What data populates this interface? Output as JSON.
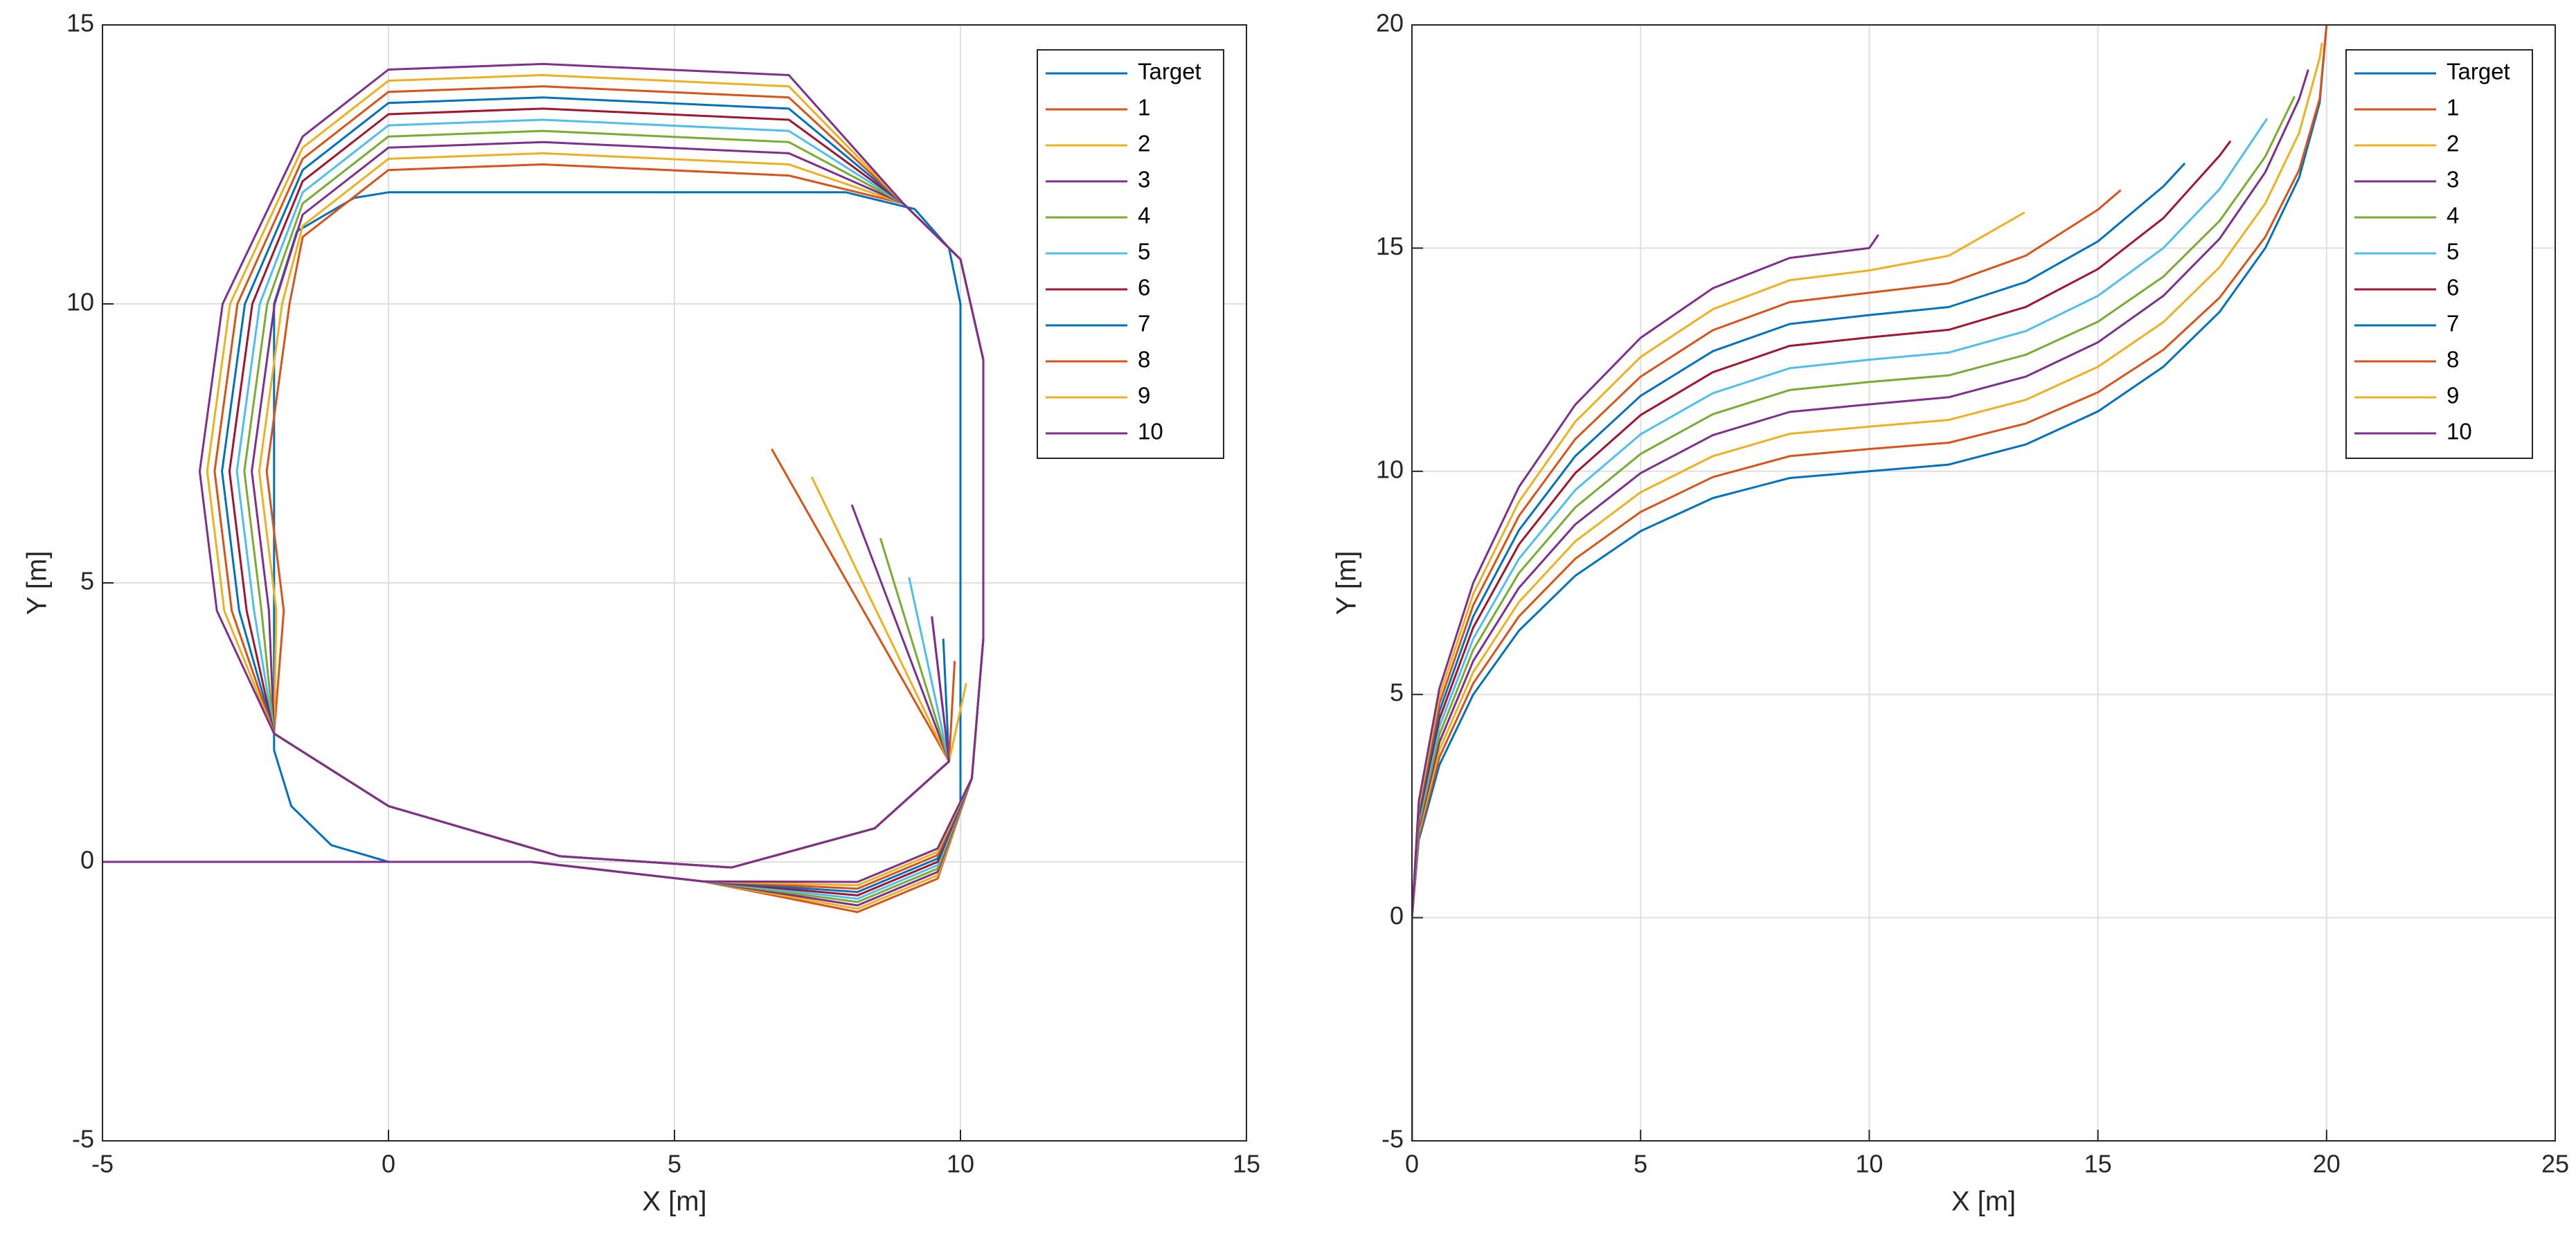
{
  "chart_data": [
    {
      "type": "line",
      "xlabel": "X [m]",
      "ylabel": "Y [m]",
      "xlim": [
        -5,
        15
      ],
      "ylim": [
        -5,
        15
      ],
      "xticks": [
        -5,
        0,
        5,
        10,
        15
      ],
      "yticks": [
        -5,
        0,
        5,
        10,
        15
      ],
      "grid": true,
      "legend": "northeast",
      "series": [
        {
          "name": "Target",
          "color": "#0072BD",
          "x": [
            0,
            -1,
            -1.7,
            -2,
            -2,
            -1.6,
            -0.6,
            0,
            8,
            9.2,
            9.8,
            10,
            10,
            10
          ],
          "y": [
            0,
            0.3,
            1,
            2,
            10,
            11.3,
            11.9,
            12,
            12,
            11.7,
            11,
            10,
            5,
            1
          ]
        },
        {
          "name": "1",
          "color": "#D95319",
          "x": [
            -5,
            2.5,
            5.5,
            8.2,
            9.6,
            10.2,
            10.4,
            10.4,
            10,
            9,
            7,
            2.7,
            0,
            -1.5,
            -1.73,
            -2.13,
            -1.83,
            -2,
            0,
            3,
            6,
            8.5,
            9.8,
            6.7
          ],
          "y": [
            0,
            0,
            -0.35,
            -0.9,
            -0.3,
            1.5,
            4,
            9,
            10.8,
            11.8,
            12.3,
            12.5,
            12.4,
            11.2,
            10,
            7,
            4.5,
            2.3,
            1,
            0.1,
            -0.1,
            0.6,
            1.8,
            7.4
          ]
        },
        {
          "name": "2",
          "color": "#EDB120",
          "x": [
            -5,
            2.5,
            5.5,
            8.2,
            9.6,
            10.2,
            10.4,
            10.4,
            10,
            9,
            7,
            2.7,
            0,
            -1.5,
            -1.86,
            -2.26,
            -1.96,
            -2,
            0,
            3,
            6,
            8.5,
            9.8,
            7.4
          ],
          "y": [
            0,
            0,
            -0.35,
            -0.84,
            -0.24,
            1.5,
            4,
            9,
            10.8,
            11.8,
            12.5,
            12.7,
            12.6,
            11.4,
            10,
            7,
            4.5,
            2.3,
            1,
            0.1,
            -0.1,
            0.6,
            1.8,
            6.9
          ]
        },
        {
          "name": "3",
          "color": "#7E2F8E",
          "x": [
            -5,
            2.5,
            5.5,
            8.2,
            9.6,
            10.2,
            10.4,
            10.4,
            10,
            9,
            7,
            2.7,
            0,
            -1.5,
            -1.99,
            -2.39,
            -2.09,
            -2,
            0,
            3,
            6,
            8.5,
            9.8,
            8.1
          ],
          "y": [
            0,
            0,
            -0.35,
            -0.78,
            -0.18,
            1.5,
            4,
            9,
            10.8,
            11.8,
            12.7,
            12.9,
            12.8,
            11.6,
            10,
            7,
            4.5,
            2.3,
            1,
            0.1,
            -0.1,
            0.6,
            1.8,
            6.4
          ]
        },
        {
          "name": "4",
          "color": "#77AC30",
          "x": [
            -5,
            2.5,
            5.5,
            8.2,
            9.6,
            10.2,
            10.4,
            10.4,
            10,
            9,
            7,
            2.7,
            0,
            -1.5,
            -2.12,
            -2.52,
            -2.22,
            -2,
            0,
            3,
            6,
            8.5,
            9.8,
            8.6
          ],
          "y": [
            0,
            0,
            -0.35,
            -0.72,
            -0.12,
            1.5,
            4,
            9,
            10.8,
            11.8,
            12.9,
            13.1,
            13,
            11.8,
            10,
            7,
            4.5,
            2.3,
            1,
            0.1,
            -0.1,
            0.6,
            1.8,
            5.8
          ]
        },
        {
          "name": "5",
          "color": "#4DBEEE",
          "x": [
            -5,
            2.5,
            5.5,
            8.2,
            9.6,
            10.2,
            10.4,
            10.4,
            10,
            9,
            7,
            2.7,
            0,
            -1.5,
            -2.25,
            -2.65,
            -2.35,
            -2,
            0,
            3,
            6,
            8.5,
            9.8,
            9.1
          ],
          "y": [
            0,
            0,
            -0.35,
            -0.66,
            -0.06,
            1.5,
            4,
            9,
            10.8,
            11.8,
            13.1,
            13.3,
            13.2,
            12,
            10,
            7,
            4.5,
            2.3,
            1,
            0.1,
            -0.1,
            0.6,
            1.8,
            5.1
          ]
        },
        {
          "name": "6",
          "color": "#A2142F",
          "x": [
            -5,
            2.5,
            5.5,
            8.2,
            9.6,
            10.2,
            10.4,
            10.4,
            10,
            9,
            7,
            2.7,
            0,
            -1.5,
            -2.38,
            -2.78,
            -2.48,
            -2,
            0,
            3,
            6,
            8.5,
            9.8,
            9.5
          ],
          "y": [
            0,
            0,
            -0.35,
            -0.6,
            0,
            1.5,
            4,
            9,
            10.8,
            11.8,
            13.3,
            13.5,
            13.4,
            12.2,
            10,
            7,
            4.5,
            2.3,
            1,
            0.1,
            -0.1,
            0.6,
            1.8,
            4.4
          ]
        },
        {
          "name": "7",
          "color": "#0072BD",
          "x": [
            -5,
            2.5,
            5.5,
            8.2,
            9.6,
            10.2,
            10.4,
            10.4,
            10,
            9,
            7,
            2.7,
            0,
            -1.5,
            -2.51,
            -2.91,
            -2.61,
            -2,
            0,
            3,
            6,
            8.5,
            9.8,
            9.7
          ],
          "y": [
            0,
            0,
            -0.35,
            -0.54,
            0.06,
            1.5,
            4,
            9,
            10.8,
            11.8,
            13.5,
            13.7,
            13.6,
            12.4,
            10,
            7,
            4.5,
            2.3,
            1,
            0.1,
            -0.1,
            0.6,
            1.8,
            4
          ]
        },
        {
          "name": "8",
          "color": "#D95319",
          "x": [
            -5,
            2.5,
            5.5,
            8.2,
            9.6,
            10.2,
            10.4,
            10.4,
            10,
            9,
            7,
            2.7,
            0,
            -1.5,
            -2.64,
            -3.04,
            -2.74,
            -2,
            0,
            3,
            6,
            8.5,
            9.8,
            9.9
          ],
          "y": [
            0,
            0,
            -0.35,
            -0.48,
            0.12,
            1.5,
            4,
            9,
            10.8,
            11.8,
            13.7,
            13.9,
            13.8,
            12.6,
            10,
            7,
            4.5,
            2.3,
            1,
            0.1,
            -0.1,
            0.6,
            1.8,
            3.6
          ]
        },
        {
          "name": "9",
          "color": "#EDB120",
          "x": [
            -5,
            2.5,
            5.5,
            8.2,
            9.6,
            10.2,
            10.4,
            10.4,
            10,
            9,
            7,
            2.7,
            0,
            -1.5,
            -2.77,
            -3.17,
            -2.87,
            -2,
            0,
            3,
            6,
            8.5,
            9.8,
            10.1
          ],
          "y": [
            0,
            0,
            -0.35,
            -0.42,
            0.18,
            1.5,
            4,
            9,
            10.8,
            11.8,
            13.9,
            14.1,
            14,
            12.8,
            10,
            7,
            4.5,
            2.3,
            1,
            0.1,
            -0.1,
            0.6,
            1.8,
            3.2
          ]
        },
        {
          "name": "10",
          "color": "#7E2F8E",
          "x": [
            -5,
            2.5,
            5.5,
            8.2,
            9.6,
            10.2,
            10.4,
            10.4,
            10,
            9,
            7,
            2.7,
            0,
            -1.5,
            -2.9,
            -3.3,
            -3,
            -2,
            0,
            3,
            6,
            8.5,
            9.8,
            9.5
          ],
          "y": [
            0,
            0,
            -0.35,
            -0.36,
            0.24,
            1.5,
            4,
            9,
            10.8,
            11.8,
            14.1,
            14.3,
            14.2,
            13,
            10,
            7,
            4.5,
            2.3,
            1,
            0.1,
            -0.1,
            0.6,
            1.8,
            4.4
          ]
        }
      ]
    },
    {
      "type": "line",
      "xlabel": "X [m]",
      "ylabel": "Y [m]",
      "xlim": [
        0,
        25
      ],
      "ylim": [
        -5,
        20
      ],
      "xticks": [
        0,
        5,
        10,
        15,
        20,
        25
      ],
      "yticks": [
        -5,
        0,
        5,
        10,
        15,
        20
      ],
      "grid": true,
      "legend": "northeast",
      "series": [
        {
          "name": "Target",
          "color": "#0072BD",
          "x": [
            0,
            0.15,
            0.6,
            1.34,
            2.34,
            3.57,
            5,
            6.58,
            8.26,
            10,
            11.74,
            13.42,
            15,
            16.43,
            17.66,
            18.66,
            19.4,
            19.85,
            20
          ],
          "y": [
            0,
            1.74,
            3.42,
            5,
            6.43,
            7.66,
            8.66,
            9.4,
            9.85,
            10,
            10.15,
            10.6,
            11.34,
            12.34,
            13.57,
            15,
            16.58,
            18.26,
            20
          ]
        },
        {
          "name": "1",
          "color": "#D95319",
          "x": [
            0,
            0,
            0.15,
            0.6,
            1.34,
            2.34,
            3.57,
            5,
            6.58,
            8.26,
            10,
            11.74,
            13.42,
            15,
            16.43,
            17.66,
            18.66,
            19.4,
            19.85,
            20
          ],
          "y": [
            -5,
            0,
            1.83,
            3.59,
            5.25,
            6.75,
            8.04,
            9.09,
            9.87,
            10.34,
            10.5,
            10.64,
            11.07,
            11.77,
            12.72,
            13.89,
            15.25,
            16.75,
            18.35,
            20
          ]
        },
        {
          "name": "2",
          "color": "#EDB120",
          "x": [
            0,
            0,
            0.15,
            0.6,
            1.34,
            2.34,
            3.57,
            5,
            6.58,
            8.26,
            10,
            11.74,
            13.42,
            15,
            16.43,
            17.66,
            18.66,
            19.4,
            19.85,
            19.9
          ],
          "y": [
            -5,
            0,
            1.91,
            3.76,
            5.5,
            7.07,
            8.43,
            9.53,
            10.34,
            10.84,
            11,
            11.15,
            11.6,
            12.34,
            13.34,
            14.57,
            16,
            17.58,
            19.26,
            19.6
          ]
        },
        {
          "name": "3",
          "color": "#7E2F8E",
          "x": [
            0,
            0,
            0.15,
            0.6,
            1.34,
            2.34,
            3.57,
            5,
            6.58,
            8.26,
            10,
            11.74,
            13.42,
            15,
            16.43,
            17.66,
            18.66,
            19.4,
            19.6
          ],
          "y": [
            -5,
            0,
            2,
            3.93,
            5.75,
            7.39,
            8.81,
            9.96,
            10.81,
            11.33,
            11.5,
            11.66,
            12.12,
            12.89,
            13.93,
            15.21,
            16.7,
            18.34,
            19
          ]
        },
        {
          "name": "4",
          "color": "#77AC30",
          "x": [
            0,
            0,
            0.15,
            0.6,
            1.34,
            2.34,
            3.57,
            5,
            6.58,
            8.26,
            10,
            11.74,
            13.42,
            15,
            16.43,
            17.66,
            18.66,
            19.3
          ],
          "y": [
            -5,
            0,
            2.09,
            4.1,
            6,
            7.72,
            9.19,
            10.39,
            11.28,
            11.82,
            12,
            12.15,
            12.61,
            13.35,
            14.36,
            15.61,
            17.05,
            18.4
          ]
        },
        {
          "name": "5",
          "color": "#4DBEEE",
          "x": [
            0,
            0,
            0.15,
            0.6,
            1.34,
            2.34,
            3.57,
            5,
            6.58,
            8.26,
            10,
            11.74,
            13.42,
            15,
            16.43,
            17.66,
            18.7
          ],
          "y": [
            -5,
            0,
            2.18,
            4.28,
            6.25,
            8.04,
            9.58,
            10.83,
            11.75,
            12.31,
            12.5,
            12.66,
            13.14,
            13.93,
            15,
            16.32,
            17.9
          ]
        },
        {
          "name": "6",
          "color": "#A2142F",
          "x": [
            0,
            0,
            0.15,
            0.6,
            1.34,
            2.34,
            3.57,
            5,
            6.58,
            8.26,
            10,
            11.74,
            13.42,
            15,
            16.43,
            17.66,
            17.9
          ],
          "y": [
            -5,
            0,
            2.26,
            4.45,
            6.5,
            8.36,
            9.96,
            11.26,
            12.22,
            12.81,
            13,
            13.17,
            13.68,
            14.53,
            15.67,
            17.07,
            17.4
          ]
        },
        {
          "name": "7",
          "color": "#0072BD",
          "x": [
            0,
            0,
            0.15,
            0.6,
            1.34,
            2.34,
            3.57,
            5,
            6.58,
            8.26,
            10,
            11.74,
            13.42,
            15,
            16.43,
            16.9
          ],
          "y": [
            -5,
            0,
            2.35,
            4.62,
            6.75,
            8.68,
            10.34,
            11.69,
            12.69,
            13.3,
            13.5,
            13.68,
            14.24,
            15.15,
            16.38,
            16.9
          ]
        },
        {
          "name": "8",
          "color": "#D95319",
          "x": [
            0,
            0,
            0.15,
            0.6,
            1.34,
            2.34,
            3.57,
            5,
            6.58,
            8.26,
            10,
            11.74,
            13.42,
            15,
            15.5
          ],
          "y": [
            -5,
            0,
            2.44,
            4.79,
            7,
            9,
            10.72,
            12.12,
            13.16,
            13.79,
            14,
            14.21,
            14.83,
            15.86,
            16.3
          ]
        },
        {
          "name": "9",
          "color": "#EDB120",
          "x": [
            0,
            0,
            0.15,
            0.6,
            1.34,
            2.34,
            3.57,
            5,
            6.58,
            8.26,
            10,
            11.74,
            13.4
          ],
          "y": [
            -5,
            0,
            2.52,
            4.96,
            7.25,
            9.32,
            11.11,
            12.56,
            13.63,
            14.28,
            14.5,
            14.83,
            15.8
          ]
        },
        {
          "name": "10",
          "color": "#7E2F8E",
          "x": [
            0,
            0,
            0.15,
            0.6,
            1.34,
            2.34,
            3.57,
            5,
            6.58,
            8.26,
            10,
            10.2
          ],
          "y": [
            -5,
            0,
            2.61,
            5.13,
            7.5,
            9.65,
            11.49,
            12.99,
            14.1,
            14.78,
            15,
            15.3
          ]
        }
      ]
    }
  ]
}
